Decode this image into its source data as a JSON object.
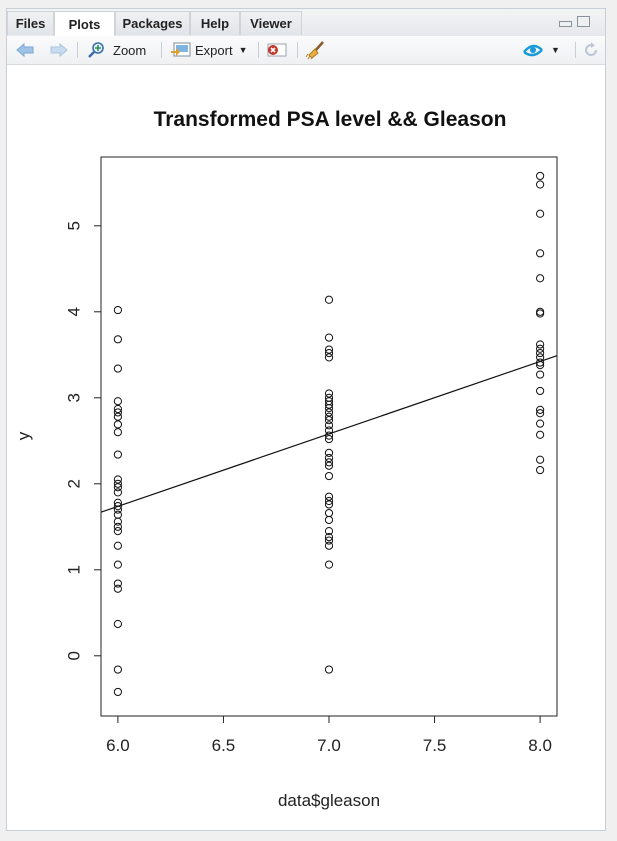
{
  "tabs": [
    {
      "label": "Files"
    },
    {
      "label": "Plots"
    },
    {
      "label": "Packages"
    },
    {
      "label": "Help"
    },
    {
      "label": "Viewer"
    }
  ],
  "active_tab": "Plots",
  "toolbar": {
    "zoom_label": "Zoom",
    "export_label": "Export"
  },
  "colors": {
    "accent_blue": "#5b9bd5",
    "publish_blue": "#1a9bd7",
    "clear_red": "#c0392b"
  },
  "icons": [
    "back-arrow-icon",
    "forward-arrow-icon",
    "zoom-icon",
    "export-icon",
    "remove-plot-icon",
    "broom-icon",
    "publish-icon",
    "refresh-icon",
    "minimize-icon",
    "maximize-icon"
  ],
  "chart_data": {
    "type": "scatter",
    "title": "Transformed PSA level && Gleason",
    "xlabel": "data$gleason",
    "ylabel": "y",
    "xlim": [
      5.92,
      8.08
    ],
    "ylim": [
      -0.7,
      5.8
    ],
    "xticks": [
      "6.0",
      "6.5",
      "7.0",
      "7.5",
      "8.0"
    ],
    "yticks": [
      "0",
      "1",
      "2",
      "3",
      "4",
      "5"
    ],
    "grid": false,
    "series": [
      {
        "x": 6,
        "y": [
          4.02,
          3.68,
          3.34,
          2.96,
          2.87,
          2.83,
          2.78,
          2.69,
          2.6,
          2.34,
          2.05,
          2.0,
          1.96,
          1.9,
          1.78,
          1.74,
          1.7,
          1.64,
          1.56,
          1.5,
          1.45,
          1.28,
          1.06,
          0.84,
          0.78,
          0.37,
          -0.16,
          -0.42
        ]
      },
      {
        "x": 7,
        "y": [
          4.14,
          3.7,
          3.56,
          3.52,
          3.47,
          3.05,
          3.0,
          2.96,
          2.92,
          2.88,
          2.83,
          2.78,
          2.74,
          2.68,
          2.62,
          2.56,
          2.52,
          2.36,
          2.3,
          2.25,
          2.21,
          2.09,
          1.85,
          1.8,
          1.76,
          1.66,
          1.58,
          1.45,
          1.38,
          1.34,
          1.28,
          1.06,
          -0.16
        ]
      },
      {
        "x": 8,
        "y": [
          5.58,
          5.48,
          5.14,
          4.68,
          4.39,
          4.0,
          3.98,
          3.62,
          3.57,
          3.52,
          3.47,
          3.41,
          3.38,
          3.27,
          3.08,
          2.86,
          2.82,
          2.7,
          2.57,
          2.28,
          2.16
        ]
      }
    ],
    "regression_line": {
      "x": [
        5.92,
        8.08
      ],
      "y": [
        1.67,
        3.49
      ]
    }
  }
}
